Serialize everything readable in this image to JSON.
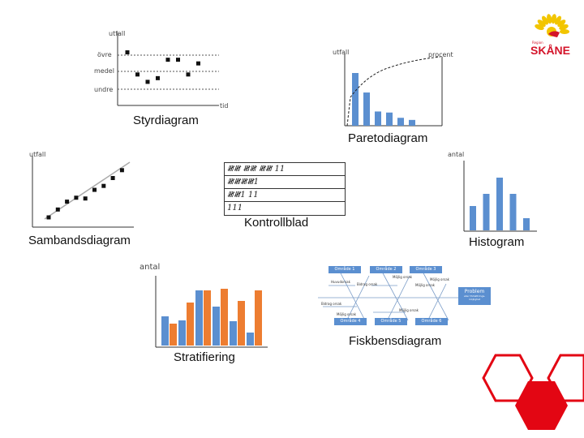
{
  "logo": {
    "small_text": "Region",
    "brand": "SKÅNE",
    "sun_color": "#f2c500",
    "brand_color": "#d4142a"
  },
  "styrdiagram": {
    "caption": "Styrdiagram",
    "y_title": "utfall",
    "levels": [
      "övre",
      "medel",
      "undre"
    ],
    "x_title": "tid",
    "chart_data": {
      "type": "scatter",
      "x": [
        1,
        2,
        3,
        4,
        5,
        6,
        7,
        8
      ],
      "y": [
        5,
        2,
        1,
        1.5,
        4,
        4,
        2,
        3.5
      ]
    }
  },
  "pareto": {
    "caption": "Paretodiagram",
    "y_title": "utfall",
    "y2_title": "procent",
    "chart_data": {
      "type": "bar",
      "values": [
        100,
        63,
        27,
        25,
        15,
        11
      ],
      "cumulative_line": true
    }
  },
  "kontrollblad": {
    "caption": "Kontrollblad",
    "rows": [
      "𝍸𝍸 𝍸𝍸 𝍸𝍸 11",
      "𝍸𝍸𝍸𝍸1",
      "𝍸𝍸1 11",
      "111"
    ]
  },
  "samband": {
    "caption": "Sambandsdiagram",
    "y_title": "utfall",
    "chart_data": {
      "type": "scatter",
      "x": [
        1,
        2,
        3,
        4,
        5,
        6,
        7,
        8,
        9
      ],
      "y": [
        1,
        2,
        3,
        3.5,
        3.4,
        4.5,
        5,
        6,
        7
      ]
    }
  },
  "histogram": {
    "caption": "Histogram",
    "y_title": "antal",
    "color": "#5b8fd0",
    "chart_data": {
      "type": "bar",
      "values": [
        30,
        45,
        65,
        45,
        15
      ]
    }
  },
  "stratifiering": {
    "caption": "Stratifiering",
    "y_title": "antal",
    "chart_data": {
      "type": "bar",
      "series": [
        {
          "color": "#5b8fd0",
          "values": [
            36,
            31,
            68,
            48,
            30,
            16
          ]
        },
        {
          "color": "#ed7d31",
          "values": [
            27,
            53,
            68,
            70,
            55,
            68
          ]
        }
      ]
    }
  },
  "fiskben": {
    "caption": "Fiskbensdiagram",
    "top_boxes": [
      "Område 1",
      "Område 2",
      "Område 3"
    ],
    "bottom_boxes": [
      "Område 4",
      "Område 5",
      "Område 6"
    ],
    "problem": "Problem",
    "problem_sub": "eller förbättrings-möjlighet",
    "cause_labels": [
      "Huvudorsak",
      "Bidrag orsak",
      "Möjlig orsak",
      "Möjlig orsak",
      "Möjlig orsak",
      "Bidrag orsak",
      "Möjlig orsak",
      "Möjlig orsak"
    ]
  },
  "hexagons": {
    "colors": [
      "#e30613",
      "#e30613",
      "#e30613"
    ]
  }
}
